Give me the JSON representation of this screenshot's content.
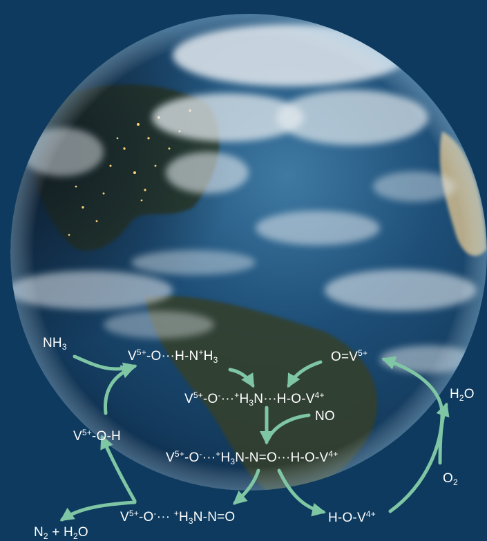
{
  "colors": {
    "background": "#0d3a5e",
    "arrow": "#7fc6a4",
    "text": "#ffffff",
    "ocean": "#1b4a72",
    "cloud": "#dfe6ec"
  },
  "labels": {
    "nh3": {
      "html": "NH<sub>3</sub>"
    },
    "complex1": {
      "html": "V<sup>5+</sup>-O<span class='dots'>···</span>H-N<sup>+</sup>H<sub>3</sub>"
    },
    "oxo": {
      "html": "O=V<sup>5+</sup>"
    },
    "h2o_right": {
      "html": "H<sub>2</sub>O"
    },
    "complex2": {
      "html": "V<sup>5+</sup>-O<sup>-</sup>···<sup>+</sup>H<sub>3</sub>N···H-O-V<sup>4+</sup>"
    },
    "no": {
      "html": "NO"
    },
    "voh": {
      "html": "V<sup>5+</sup>-O-H"
    },
    "complex3": {
      "html": "V<sup>5+</sup>-O<sup>-</sup>···<sup>+</sup>H<sub>3</sub>N-N=O···H-O-V<sup>4+</sup>"
    },
    "o2": {
      "html": "O<sub>2</sub>"
    },
    "complex4": {
      "html": "V<sup>5+</sup>-O<sup>-</sup>··· <sup>+</sup>H<sub>3</sub>N-N=O"
    },
    "hov": {
      "html": "H-O-V<sup>4+</sup>"
    },
    "products": {
      "html": "N<sub>2</sub> + H<sub>2</sub>O"
    }
  }
}
